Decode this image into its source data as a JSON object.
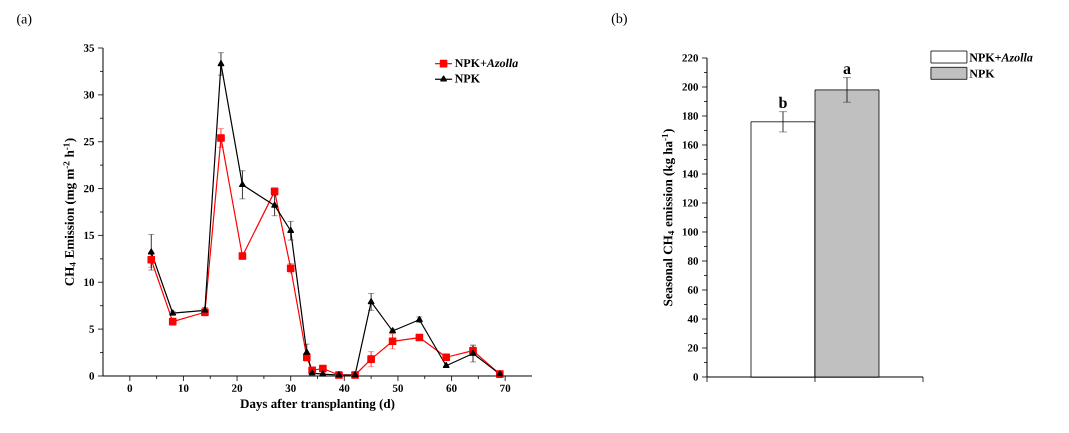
{
  "chart_data": [
    {
      "type": "line",
      "title": "(a)",
      "xlabel": "Days after transplanting (d)",
      "ylabel": "CH$_{4}$ Emission (mg m$^{-2}$ h$^{-1}$)",
      "x": [
        4,
        8,
        14,
        17,
        21,
        27,
        30,
        33,
        34,
        36,
        39,
        42,
        45,
        49,
        54,
        59,
        64,
        69
      ],
      "series": [
        {
          "name": "NPK+*Azolla*",
          "color": "#ff0000",
          "marker": "square",
          "values": [
            12.4,
            5.8,
            6.8,
            25.4,
            12.8,
            19.7,
            11.5,
            2.0,
            0.6,
            0.8,
            0.1,
            0.1,
            1.8,
            3.7,
            4.1,
            2.0,
            2.7,
            0.2
          ],
          "errors": [
            0.8,
            0.3,
            0.4,
            1.0,
            0.2,
            0.3,
            0.5,
            0.3,
            null,
            0.2,
            0.1,
            0.1,
            0.8,
            0.8,
            0.3,
            0.3,
            0.5,
            0.1
          ]
        },
        {
          "name": "NPK",
          "color": "#000000",
          "marker": "triangle",
          "values": [
            13.2,
            6.7,
            7.0,
            33.3,
            20.4,
            18.2,
            15.5,
            2.5,
            0.3,
            0.2,
            0.1,
            0.1,
            7.9,
            4.8,
            6.0,
            1.1,
            2.4,
            0.2
          ],
          "errors": [
            1.9,
            0.2,
            0.3,
            1.2,
            1.5,
            1.1,
            1.0,
            0.9,
            0.2,
            0.1,
            0.1,
            0.1,
            0.9,
            0.2,
            0.3,
            null,
            0.9,
            0.1
          ]
        }
      ],
      "xlim": [
        -5,
        75
      ],
      "xticks": [
        0,
        10,
        20,
        30,
        40,
        50,
        60,
        70
      ],
      "ylim": [
        0,
        35
      ],
      "yticks": [
        0,
        5,
        10,
        15,
        20,
        25,
        30,
        35
      ],
      "legend": "top right",
      "grid": false
    },
    {
      "type": "bar",
      "title": "(b)",
      "ylabel": "Seasonal CH$_{4}$ emission (kg ha$^{-1}$)",
      "categories": [
        null
      ],
      "series": [
        {
          "name": "NPK+*Azolla*",
          "color": "#ffffff",
          "values": [
            176
          ],
          "errors": [
            7
          ]
        },
        {
          "name": "NPK",
          "color": "#c0c0c0",
          "values": [
            198
          ],
          "errors": [
            8.5
          ]
        }
      ],
      "annotations": [
        {
          "text": "b",
          "y": 183
        },
        {
          "text": "a",
          "y": 206.5
        }
      ],
      "ylim": [
        0,
        220
      ],
      "yticks": [
        0,
        20,
        40,
        60,
        80,
        100,
        120,
        140,
        160,
        180,
        200,
        220
      ],
      "legend": "right",
      "grid": false
    }
  ]
}
